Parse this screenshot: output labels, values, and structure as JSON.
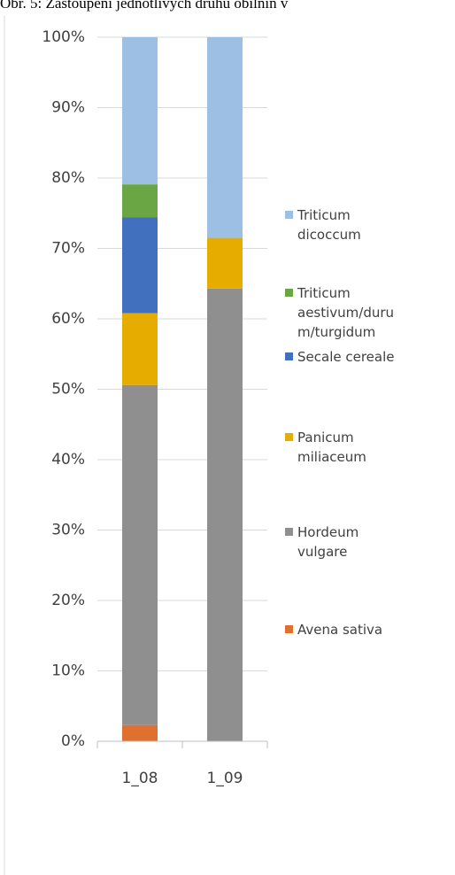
{
  "chart_data": {
    "type": "stacked_bar",
    "title": "Obr. 5: Zastoupení jednotlivých druhů obilnin v",
    "categories": [
      "1_08",
      "1_09"
    ],
    "series": [
      {
        "name": "Avena sativa",
        "color": "#e07030",
        "values": [
          2.3,
          0
        ]
      },
      {
        "name": "Hordeum vulgare",
        "color": "#8f8f8f",
        "values": [
          48.3,
          64.3
        ]
      },
      {
        "name": "Panicum miliaceum",
        "color": "#e6ac00",
        "values": [
          10.2,
          7.2
        ]
      },
      {
        "name": "Secale cereale",
        "color": "#4170be",
        "values": [
          13.6,
          0
        ]
      },
      {
        "name": "Triticum aestivum/durum/turgidum",
        "color": "#6aa744",
        "values": [
          4.7,
          0
        ]
      },
      {
        "name": "Triticum dicoccum",
        "color": "#9cbfe3",
        "values": [
          20.9,
          28.5
        ]
      }
    ],
    "ylim": [
      0,
      100
    ],
    "yticks": [
      {
        "value": 0,
        "label": "0%"
      },
      {
        "value": 10,
        "label": "10%"
      },
      {
        "value": 20,
        "label": "20%"
      },
      {
        "value": 30,
        "label": "30%"
      },
      {
        "value": 40,
        "label": "40%"
      },
      {
        "value": 50,
        "label": "50%"
      },
      {
        "value": 60,
        "label": "60%"
      },
      {
        "value": 70,
        "label": "70%"
      },
      {
        "value": 80,
        "label": "80%"
      },
      {
        "value": 90,
        "label": "90%"
      },
      {
        "value": 100,
        "label": "100%"
      }
    ],
    "grid": true
  }
}
